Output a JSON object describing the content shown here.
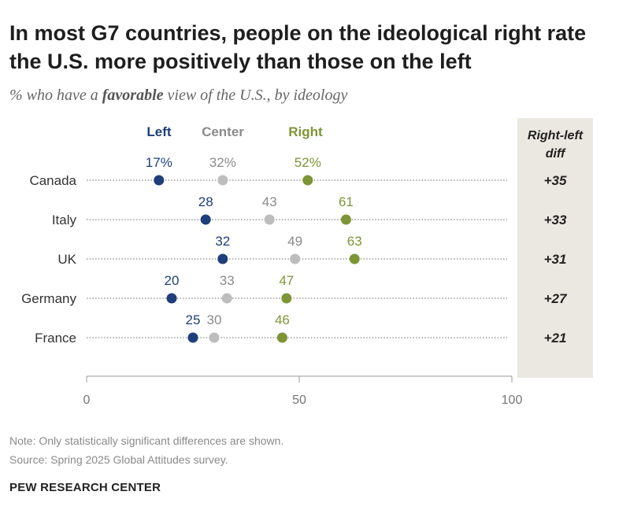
{
  "title": "In most G7 countries, people on the ideological right rate the U.S. more positively than those on the left",
  "subtitle": {
    "prefix": "% who have a ",
    "emphasis": "favorable",
    "suffix": " view of the U.S., by ideology"
  },
  "colors": {
    "left": "#1f3f7a",
    "center": "#bdbdbd",
    "right": "#7d9535",
    "center_label": "#8a8a8a",
    "diff_panel": "#ebe8e1",
    "dots": "#9a9a9a",
    "axis": "#999999"
  },
  "chart_data": {
    "type": "dot-plot",
    "categories": [
      "Canada",
      "Italy",
      "UK",
      "Germany",
      "France"
    ],
    "series": [
      {
        "name": "Left",
        "values": [
          17,
          28,
          32,
          20,
          25
        ],
        "labels": [
          "17%",
          "28",
          "32",
          "20",
          "25"
        ]
      },
      {
        "name": "Center",
        "values": [
          32,
          43,
          49,
          33,
          30
        ],
        "labels": [
          "32%",
          "43",
          "49",
          "33",
          "30"
        ]
      },
      {
        "name": "Right",
        "values": [
          52,
          61,
          63,
          47,
          46
        ],
        "labels": [
          "52%",
          "61",
          "63",
          "47",
          "46"
        ]
      }
    ],
    "diff_header": [
      "Right-left",
      "diff"
    ],
    "diffs": [
      "+35",
      "+33",
      "+31",
      "+27",
      "+21"
    ],
    "xlim": [
      0,
      100
    ],
    "xticks": [
      0,
      50,
      100
    ]
  },
  "notes": {
    "note": "Note: Only statistically significant differences are shown.",
    "source": "Source: Spring 2025 Global Attitudes survey."
  },
  "brand": "PEW RESEARCH CENTER"
}
